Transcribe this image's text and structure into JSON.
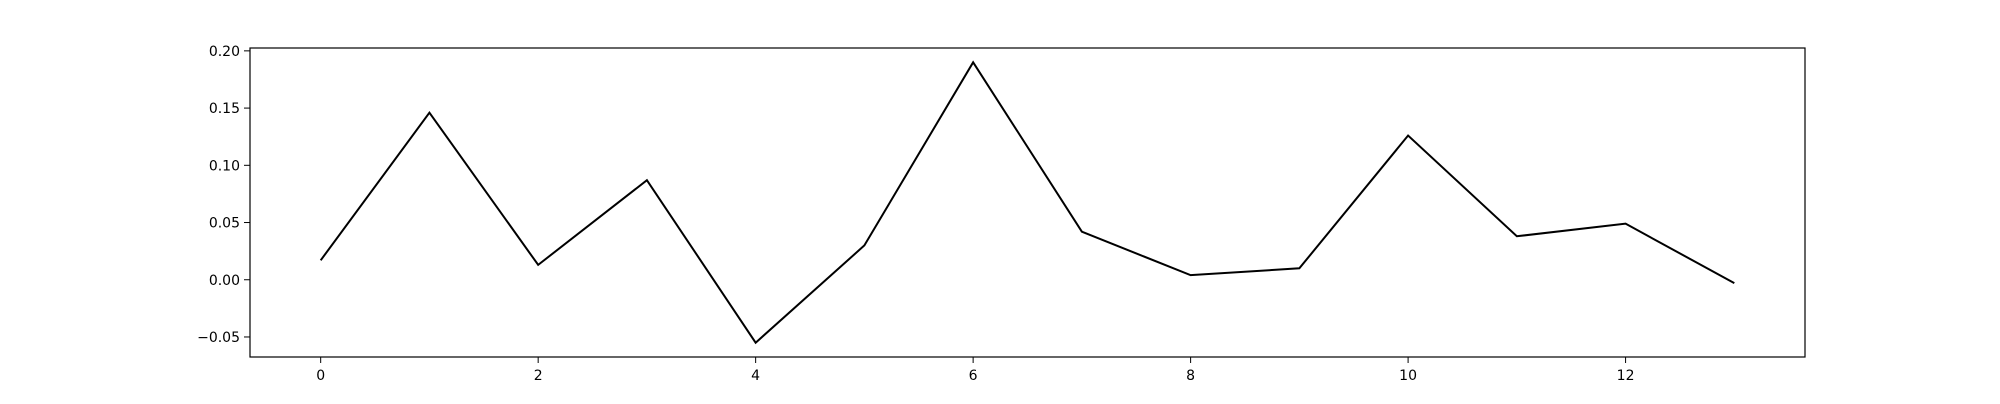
{
  "chart_data": {
    "type": "line",
    "title": "",
    "xlabel": "",
    "ylabel": "",
    "x": [
      0,
      1,
      2,
      3,
      4,
      5,
      6,
      7,
      8,
      9,
      10,
      11,
      12,
      13
    ],
    "series": [
      {
        "values": [
          0.017,
          0.146,
          0.013,
          0.087,
          -0.055,
          0.03,
          0.19,
          0.042,
          0.004,
          0.01,
          0.126,
          0.038,
          0.049,
          -0.003
        ],
        "color": "#000000"
      }
    ],
    "xlim": [
      -0.65,
      13.65
    ],
    "ylim": [
      -0.0675,
      0.2025
    ],
    "x_ticks": [
      0,
      2,
      4,
      6,
      8,
      10,
      12
    ],
    "x_tick_labels": [
      "0",
      "2",
      "4",
      "6",
      "8",
      "10",
      "12"
    ],
    "y_ticks": [
      -0.05,
      0.0,
      0.05,
      0.1,
      0.15,
      0.2
    ],
    "y_tick_labels": [
      "−0.05",
      "0.00",
      "0.05",
      "0.10",
      "0.15",
      "0.20"
    ],
    "grid": false,
    "legend": "none"
  }
}
